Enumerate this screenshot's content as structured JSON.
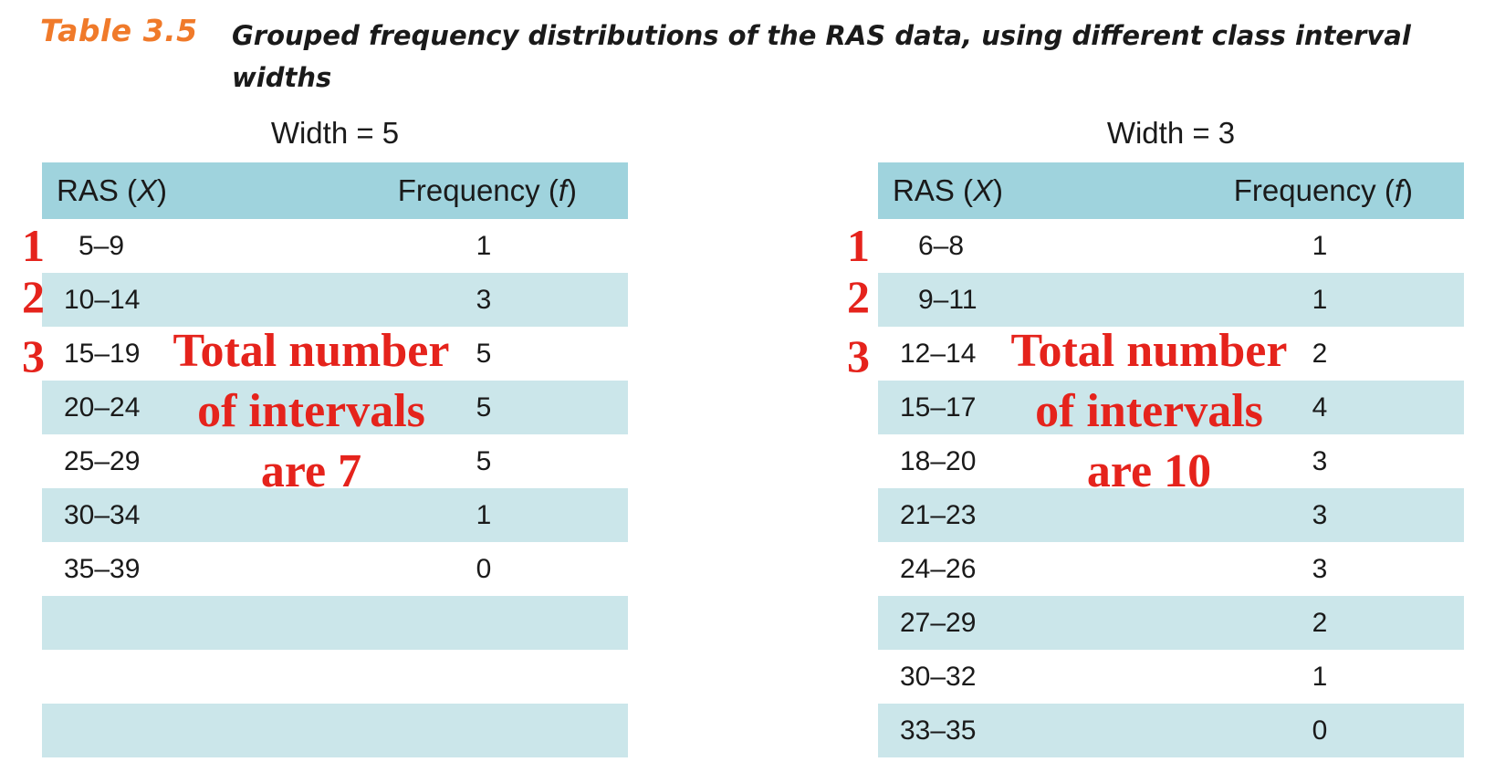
{
  "caption": {
    "label": "Table 3.5",
    "text": "Grouped frequency distributions of the RAS data, using different class interval widths"
  },
  "left_table": {
    "title": "Width = 5",
    "header": {
      "ras": "RAS (X)",
      "freq": "Frequency (f)"
    },
    "rows": [
      {
        "ras": "5–9",
        "freq": "1"
      },
      {
        "ras": "10–14",
        "freq": "3"
      },
      {
        "ras": "15–19",
        "freq": "5"
      },
      {
        "ras": "20–24",
        "freq": "5"
      },
      {
        "ras": "25–29",
        "freq": "5"
      },
      {
        "ras": "30–34",
        "freq": "1"
      },
      {
        "ras": "35–39",
        "freq": "0"
      },
      {
        "ras": "",
        "freq": ""
      },
      {
        "ras": "",
        "freq": ""
      },
      {
        "ras": "",
        "freq": ""
      }
    ]
  },
  "right_table": {
    "title": "Width = 3",
    "header": {
      "ras": "RAS (X)",
      "freq": "Frequency (f)"
    },
    "rows": [
      {
        "ras": "6–8",
        "freq": "1"
      },
      {
        "ras": "9–11",
        "freq": "1"
      },
      {
        "ras": "12–14",
        "freq": "2"
      },
      {
        "ras": "15–17",
        "freq": "4"
      },
      {
        "ras": "18–20",
        "freq": "3"
      },
      {
        "ras": "21–23",
        "freq": "3"
      },
      {
        "ras": "24–26",
        "freq": "3"
      },
      {
        "ras": "27–29",
        "freq": "2"
      },
      {
        "ras": "30–32",
        "freq": "1"
      },
      {
        "ras": "33–35",
        "freq": "0"
      }
    ]
  },
  "annotations": {
    "left_numbers": [
      "1",
      "2",
      "3"
    ],
    "right_numbers": [
      "1",
      "2",
      "3"
    ],
    "left_note": [
      "Total number",
      "of intervals",
      "are 7"
    ],
    "right_note": [
      "Total number",
      "of intervals",
      "are 10"
    ],
    "color": "#e5231c"
  },
  "colors": {
    "caption_label": "#f07a2a",
    "header_bg": "#9fd3dd",
    "alt_row_bg": "#cbe6ea"
  }
}
